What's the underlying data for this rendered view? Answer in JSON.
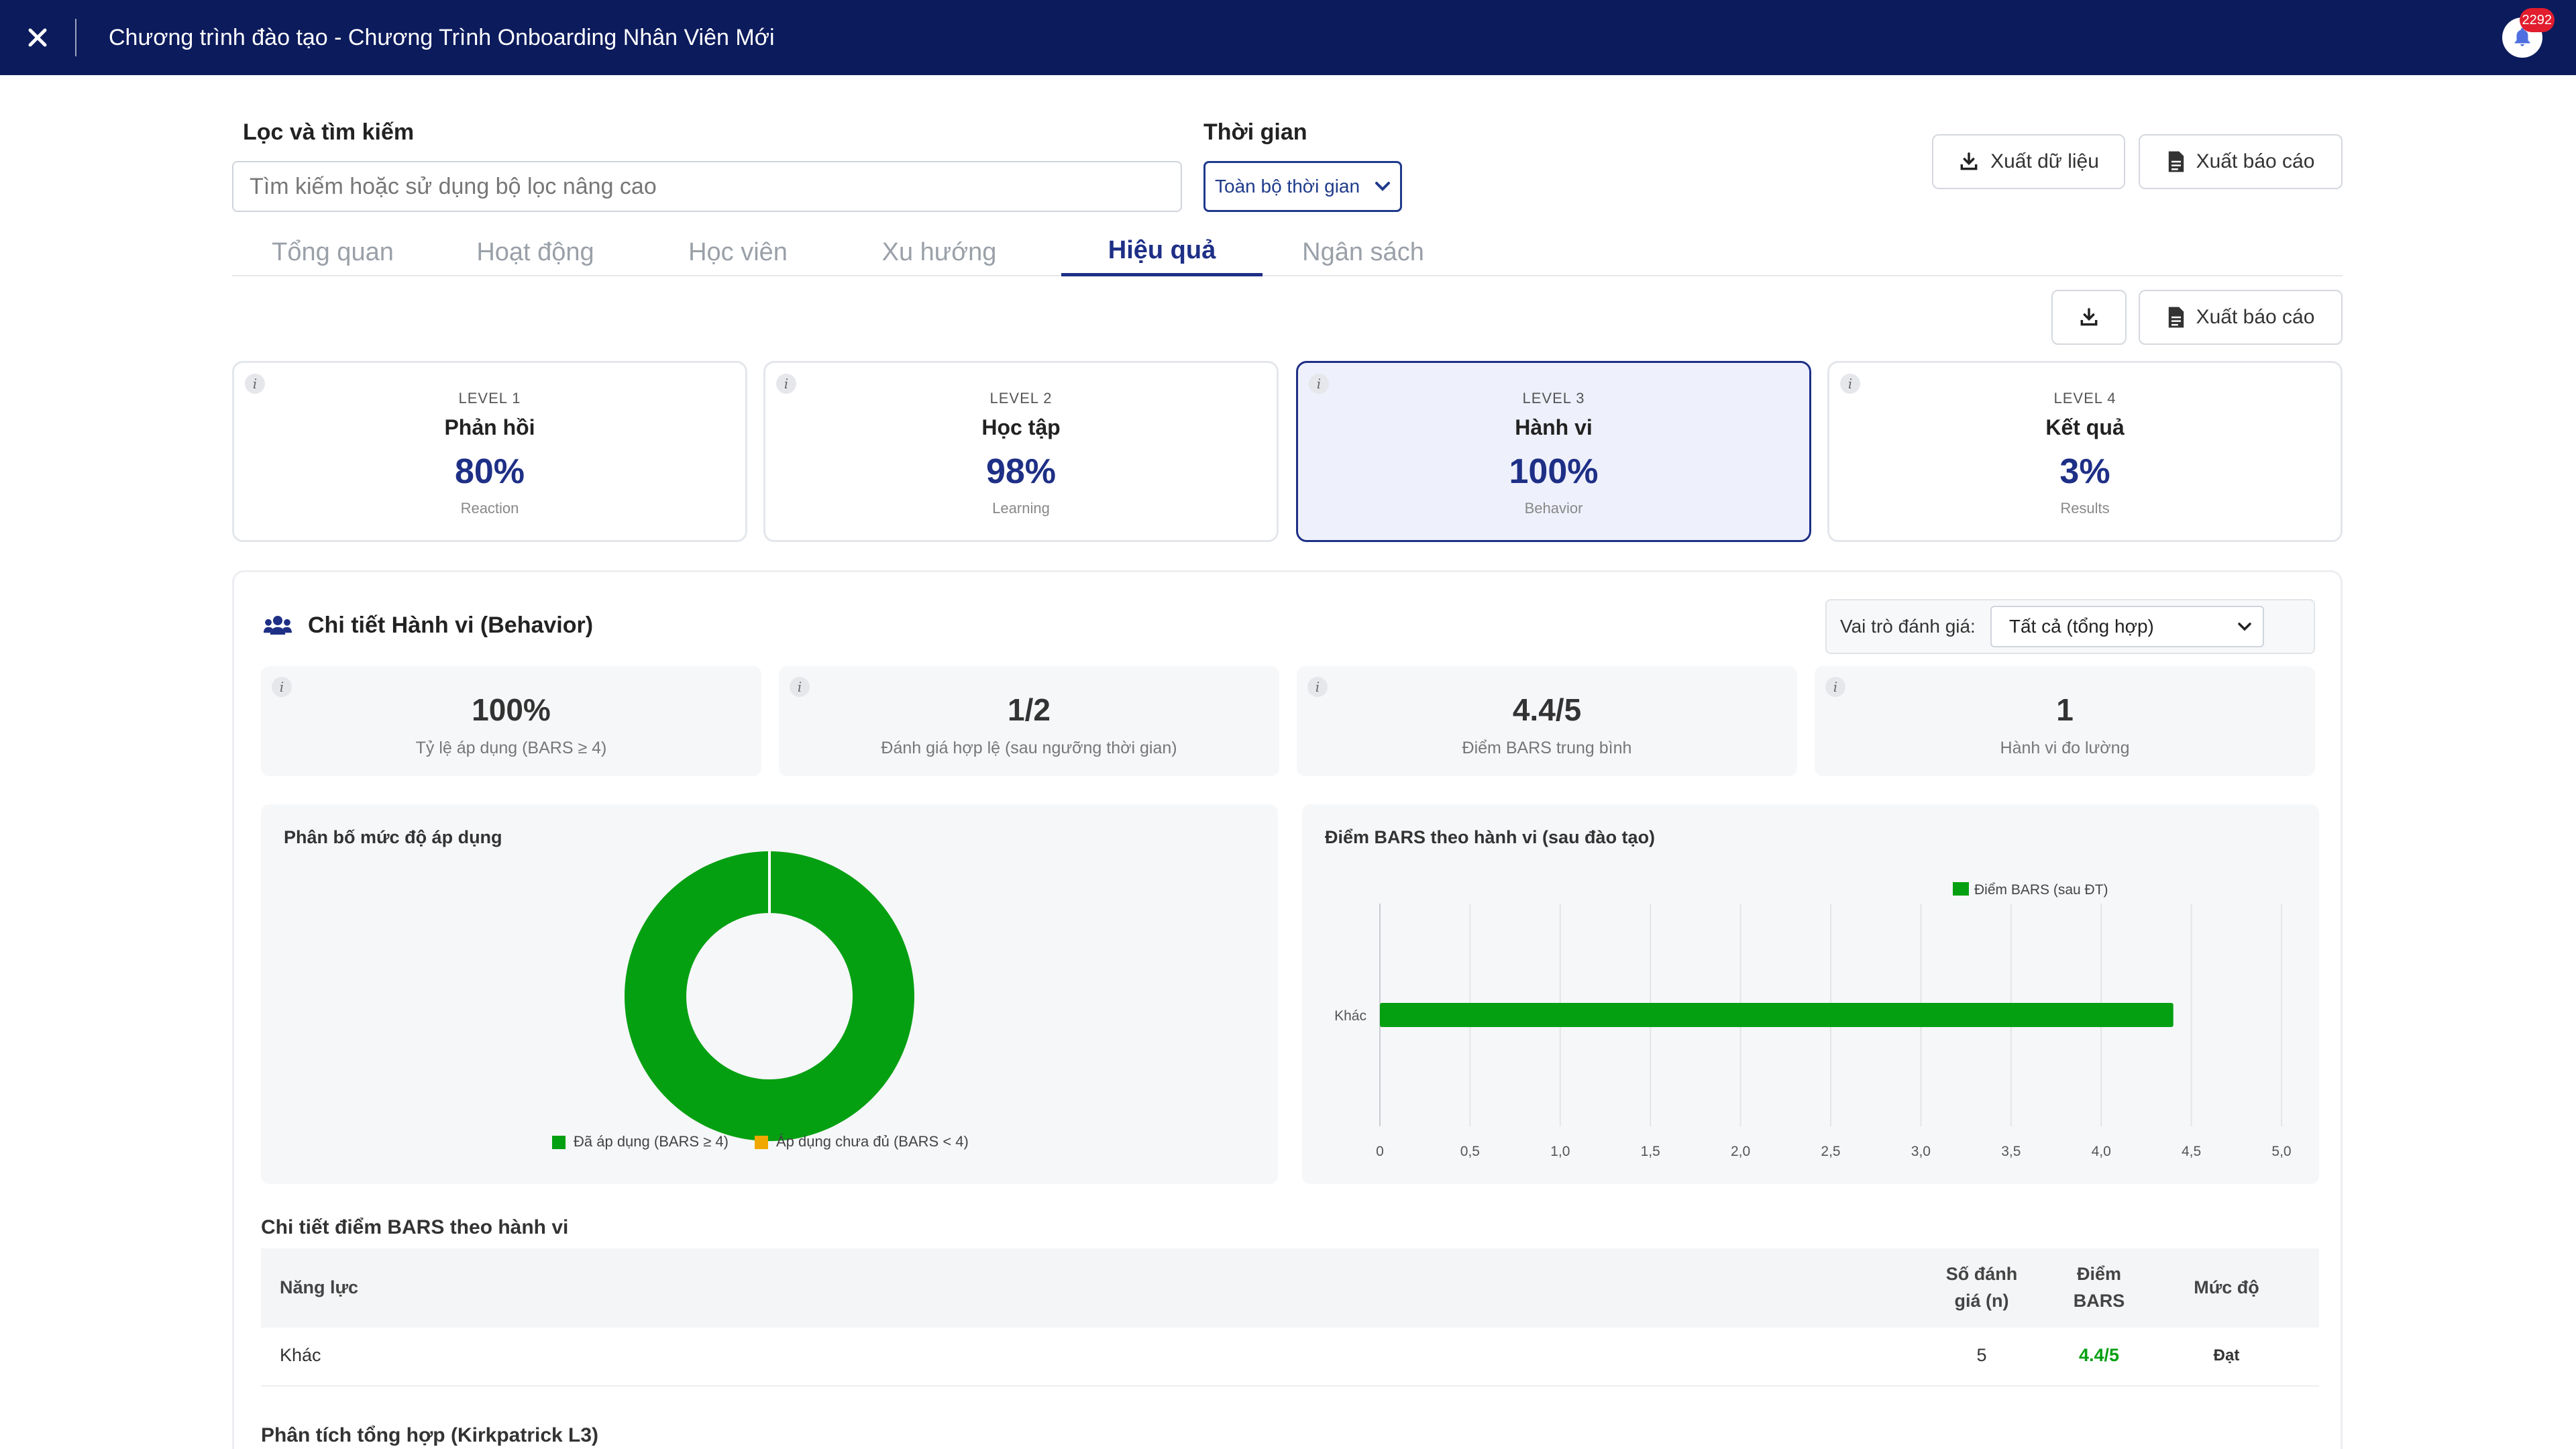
{
  "header": {
    "title": "Chương trình đào tạo - Chương Trình Onboarding Nhân Viên Mới",
    "notification_count": "2292"
  },
  "filters": {
    "search_label": "Lọc và tìm kiếm",
    "search_placeholder": "Tìm kiếm hoặc sử dụng bộ lọc nâng cao",
    "time_label": "Thời gian",
    "time_value": "Toàn bộ thời gian"
  },
  "actions": {
    "export_data": "Xuất dữ liệu",
    "export_report": "Xuất báo cáo",
    "export_report_2": "Xuất báo cáo"
  },
  "tabs": [
    {
      "label": "Tổng quan"
    },
    {
      "label": "Hoạt động"
    },
    {
      "label": "Học viên"
    },
    {
      "label": "Xu hướng"
    },
    {
      "label": "Hiệu quả"
    },
    {
      "label": "Ngân sách"
    }
  ],
  "levels": [
    {
      "tag": "LEVEL 1",
      "name": "Phản hồi",
      "value": "80%",
      "sub": "Reaction"
    },
    {
      "tag": "LEVEL 2",
      "name": "Học tập",
      "value": "98%",
      "sub": "Learning"
    },
    {
      "tag": "LEVEL 3",
      "name": "Hành vi",
      "value": "100%",
      "sub": "Behavior"
    },
    {
      "tag": "LEVEL 4",
      "name": "Kết quả",
      "value": "3%",
      "sub": "Results"
    }
  ],
  "detail": {
    "title": "Chi tiết Hành vi (Behavior)",
    "role_label": "Vai trò đánh giá:",
    "role_value": "Tất cả (tổng hợp)",
    "stats": [
      {
        "value": "100%",
        "label": "Tỷ lệ áp dụng (BARS ≥ 4)"
      },
      {
        "value": "1/2",
        "label": "Đánh giá hợp lệ (sau ngưỡng thời gian)"
      },
      {
        "value": "4.4/5",
        "label": "Điểm BARS trung bình"
      },
      {
        "value": "1",
        "label": "Hành vi đo lường"
      }
    ]
  },
  "chart_data": [
    {
      "type": "pie",
      "title": "Phân bố mức độ áp dụng",
      "categories": [
        "Đã áp dụng (BARS ≥ 4)",
        "Áp dụng chưa đủ (BARS < 4)"
      ],
      "values": [
        100,
        0
      ],
      "colors": [
        "#05a012",
        "#f0a800"
      ],
      "legend": "bottom"
    },
    {
      "type": "bar",
      "title": "Điểm BARS theo hành vi (sau đào tạo)",
      "orientation": "horizontal",
      "categories": [
        "Khác"
      ],
      "series": [
        {
          "name": "Điểm BARS (sau ĐT)",
          "values": [
            4.4
          ],
          "color": "#05a012"
        }
      ],
      "xlim": [
        0,
        5
      ],
      "ticks": [
        "0",
        "0,5",
        "1,0",
        "1,5",
        "2,0",
        "2,5",
        "3,0",
        "3,5",
        "4,0",
        "4,5",
        "5,0"
      ],
      "grid": true,
      "legend": "top"
    }
  ],
  "table": {
    "title": "Chi tiết điểm BARS theo hành vi",
    "headers": {
      "competency": "Năng lực",
      "count_l1": "Số đánh",
      "count_l2": "giá (n)",
      "score_l1": "Điểm",
      "score_l2": "BARS",
      "level": "Mức độ"
    },
    "rows": [
      {
        "competency": "Khác",
        "count": "5",
        "score": "4.4/5",
        "level": "Đạt"
      }
    ]
  },
  "summary_title": "Phân tích tổng hợp (Kirkpatrick L3)",
  "colors": {
    "navy": "#0c1b5c",
    "accent": "#1e2f86",
    "green": "#05a012",
    "amber": "#f0a800"
  }
}
